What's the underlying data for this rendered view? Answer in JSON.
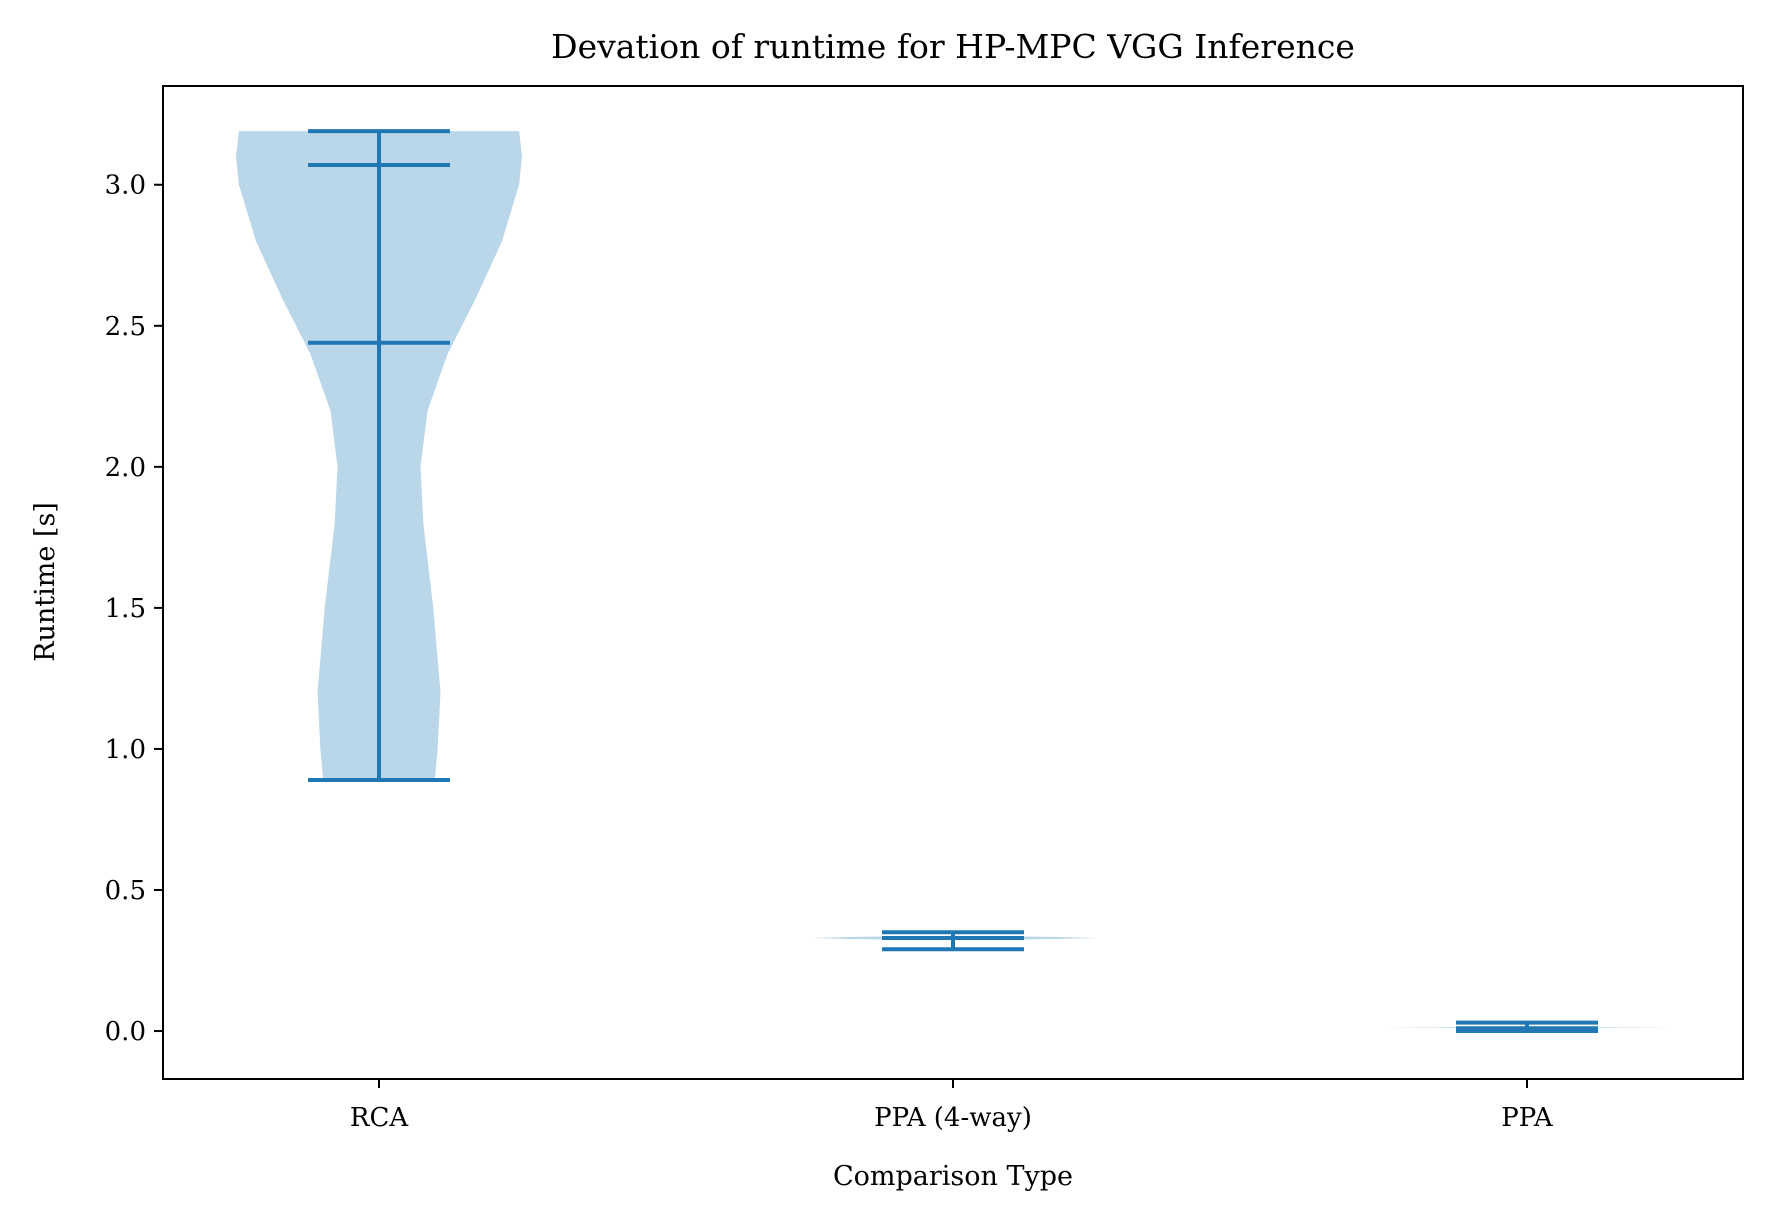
{
  "chart_data": {
    "type": "violin",
    "title": "Devation of runtime for HP-MPC VGG Inference",
    "xlabel": "Comparison Type",
    "ylabel": "Runtime [s]",
    "ylim": [
      -0.17,
      3.35
    ],
    "yticks": [
      "0.0",
      "0.5",
      "1.0",
      "1.5",
      "2.0",
      "2.5",
      "3.0"
    ],
    "ytick_values": [
      0.0,
      0.5,
      1.0,
      1.5,
      2.0,
      2.5,
      3.0
    ],
    "categories": [
      "RCA",
      "PPA (4-way)",
      "PPA"
    ],
    "violins": [
      {
        "category": "RCA",
        "min": 0.89,
        "max": 3.19,
        "median": 2.44,
        "extra_line": 3.07,
        "density_profile": [
          [
            0.89,
            0.39
          ],
          [
            1.0,
            0.41
          ],
          [
            1.2,
            0.43
          ],
          [
            1.5,
            0.38
          ],
          [
            1.8,
            0.31
          ],
          [
            2.0,
            0.29
          ],
          [
            2.2,
            0.34
          ],
          [
            2.4,
            0.48
          ],
          [
            2.6,
            0.68
          ],
          [
            2.8,
            0.86
          ],
          [
            3.0,
            0.98
          ],
          [
            3.1,
            1.0
          ],
          [
            3.19,
            0.98
          ]
        ]
      },
      {
        "category": "PPA (4-way)",
        "min": 0.29,
        "max": 0.35,
        "median": 0.33,
        "density_profile": [
          [
            0.33,
            1.0
          ]
        ]
      },
      {
        "category": "PPA",
        "min": 0.0,
        "max": 0.03,
        "median": 0.01,
        "density_profile": [
          [
            0.012,
            1.0
          ]
        ]
      }
    ],
    "colors": {
      "body": "#bad6e9",
      "lines": "#1f77b4",
      "axes": "#000000"
    },
    "grid": false,
    "legend": "none"
  }
}
